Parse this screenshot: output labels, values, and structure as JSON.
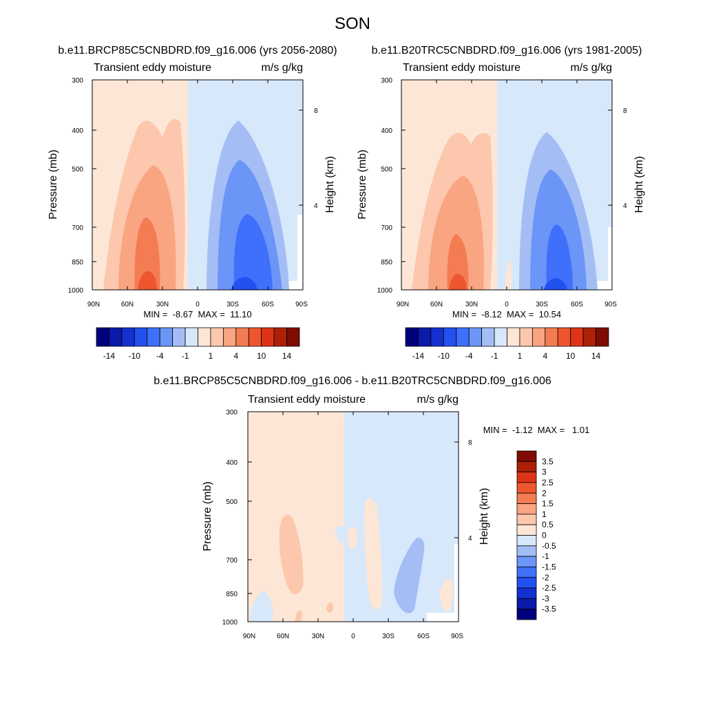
{
  "chart_data": {
    "type": "contour",
    "page_title": "SON",
    "panels": [
      {
        "id": "future",
        "title": "b.e11.BRCP85C5CNBDRD.f09_g16.006 (yrs 2056-2080)",
        "left_string": "Transient eddy moisture",
        "right_string": "m/s g/kg",
        "ylabel": "Pressure (mb)",
        "ylabel_right": "Height (km)",
        "x_ticks": [
          "90N",
          "60N",
          "30N",
          "0",
          "30S",
          "60S",
          "90S"
        ],
        "y_ticks": [
          "300",
          "400",
          "500",
          "700",
          "850",
          "1000"
        ],
        "y_ticks_right": [
          "8",
          "4"
        ],
        "min_max": "MIN =  -8.67  MAX =  11.10",
        "min": -8.67,
        "max": 11.1
      },
      {
        "id": "historical",
        "title": "b.e11.B20TRC5CNBDRD.f09_g16.006 (yrs 1981-2005)",
        "left_string": "Transient eddy moisture",
        "right_string": "m/s g/kg",
        "ylabel": "Pressure (mb)",
        "ylabel_right": "Height (km)",
        "x_ticks": [
          "90N",
          "60N",
          "30N",
          "0",
          "30S",
          "60S",
          "90S"
        ],
        "y_ticks": [
          "300",
          "400",
          "500",
          "700",
          "850",
          "1000"
        ],
        "y_ticks_right": [
          "8",
          "4"
        ],
        "min_max": "MIN =  -8.12  MAX =  10.54",
        "min": -8.12,
        "max": 10.54
      },
      {
        "id": "difference",
        "title": "b.e11.BRCP85C5CNBDRD.f09_g16.006 - b.e11.B20TRC5CNBDRD.f09_g16.006",
        "left_string": "Transient eddy moisture",
        "right_string": "m/s g/kg",
        "ylabel": "Pressure (mb)",
        "ylabel_right": "Height (km)",
        "x_ticks": [
          "90N",
          "60N",
          "30N",
          "0",
          "30S",
          "60S",
          "90S"
        ],
        "y_ticks": [
          "300",
          "400",
          "500",
          "700",
          "850",
          "1000"
        ],
        "y_ticks_right": [
          "8",
          "4"
        ],
        "min_max": "MIN =  -1.12  MAX =   1.01",
        "min": -1.12,
        "max": 1.01
      }
    ],
    "colorbar_main": {
      "labels": [
        "-14",
        "-10",
        "-4",
        "-1",
        "1",
        "4",
        "10",
        "14"
      ],
      "colors": [
        "#00007c",
        "#0b1aa8",
        "#1431cf",
        "#2351f0",
        "#3f70fb",
        "#6c95f8",
        "#a4bef5",
        "#d7e8fb",
        "#fde6d6",
        "#fcc7ac",
        "#f9a581",
        "#f47c52",
        "#ee5630",
        "#dd3415",
        "#ad2107",
        "#7e0c02"
      ]
    },
    "colorbar_diff": {
      "labels": [
        "3.5",
        "3",
        "2.5",
        "2",
        "1.5",
        "1",
        "0.5",
        "0",
        "-0.5",
        "-1",
        "-1.5",
        "-2",
        "-2.5",
        "-3",
        "-3.5"
      ],
      "colors": [
        "#7e0c02",
        "#ad2107",
        "#dd3415",
        "#ee5630",
        "#f47c52",
        "#f9a581",
        "#fcc7ac",
        "#fde6d6",
        "#d7e8fb",
        "#a4bef5",
        "#6c95f8",
        "#3f70fb",
        "#2351f0",
        "#1431cf",
        "#0b1aa8",
        "#00007c"
      ]
    }
  }
}
